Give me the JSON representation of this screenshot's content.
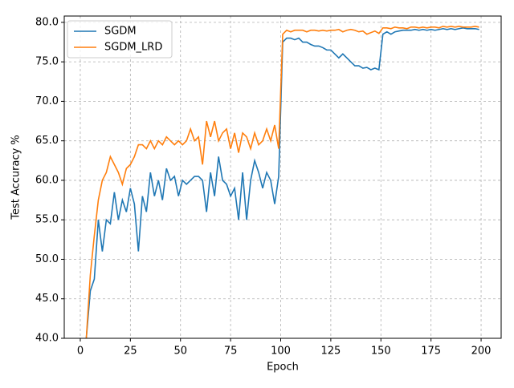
{
  "chart_data": {
    "type": "line",
    "xlabel": "Epoch",
    "ylabel": "Test Accuracy %",
    "x": [
      3,
      5,
      7,
      9,
      11,
      13,
      15,
      17,
      19,
      21,
      23,
      25,
      27,
      29,
      31,
      33,
      35,
      37,
      39,
      41,
      43,
      45,
      47,
      49,
      51,
      53,
      55,
      57,
      59,
      61,
      63,
      65,
      67,
      69,
      71,
      73,
      75,
      77,
      79,
      81,
      83,
      85,
      87,
      89,
      91,
      93,
      95,
      97,
      99,
      101,
      103,
      105,
      107,
      109,
      111,
      113,
      115,
      117,
      119,
      121,
      123,
      125,
      127,
      129,
      131,
      133,
      135,
      137,
      139,
      141,
      143,
      145,
      147,
      149,
      151,
      153,
      155,
      157,
      159,
      161,
      163,
      165,
      167,
      169,
      171,
      173,
      175,
      177,
      179,
      181,
      183,
      185,
      187,
      189,
      191,
      193,
      195,
      197,
      199
    ],
    "series": [
      {
        "name": "SGDM",
        "color": "#1f77b4",
        "values": [
          40,
          46,
          47.5,
          55,
          51,
          55,
          54.5,
          58.5,
          55,
          57.5,
          56,
          59,
          57,
          51,
          58,
          56,
          61,
          58,
          60,
          57.5,
          61.5,
          60,
          60.5,
          58,
          60,
          59.5,
          60,
          60.5,
          60.5,
          60,
          56,
          61,
          58,
          63,
          60,
          59.5,
          58,
          59,
          55,
          61,
          55,
          60,
          62.5,
          61,
          59,
          61,
          60,
          57,
          60.5,
          77.5,
          78,
          78,
          77.8,
          78,
          77.5,
          77.5,
          77.2,
          77,
          77,
          76.8,
          76.5,
          76.5,
          76,
          75.5,
          76,
          75.5,
          75,
          74.5,
          74.5,
          74.2,
          74.3,
          74,
          74.2,
          74,
          78.5,
          78.8,
          78.5,
          78.8,
          78.9,
          79,
          79,
          79,
          79.1,
          79,
          79.1,
          79,
          79.1,
          79,
          79.1,
          79.2,
          79.1,
          79.2,
          79.1,
          79.2,
          79.3,
          79.2,
          79.2,
          79.2,
          79.1
        ]
      },
      {
        "name": "SGDM_LRD",
        "color": "#ff7f0e",
        "values": [
          40,
          48,
          53,
          57.5,
          60,
          61,
          63,
          62,
          61,
          59.5,
          61.5,
          62,
          63,
          64.5,
          64.5,
          64,
          65,
          64,
          65,
          64.5,
          65.5,
          65,
          64.5,
          65,
          64.5,
          65,
          66.5,
          65,
          65.5,
          62,
          67.5,
          65.5,
          67.5,
          65,
          66,
          66.5,
          64,
          66,
          63.5,
          66,
          65.5,
          64,
          66,
          64.5,
          65,
          66.5,
          65,
          67,
          64,
          78.5,
          79,
          78.8,
          79,
          79,
          79,
          78.8,
          79,
          79,
          78.9,
          79,
          78.9,
          79,
          79,
          79.1,
          78.8,
          79,
          79.1,
          79,
          78.8,
          78.9,
          78.5,
          78.7,
          78.9,
          78.6,
          79.3,
          79.3,
          79.2,
          79.4,
          79.3,
          79.3,
          79.2,
          79.4,
          79.4,
          79.3,
          79.4,
          79.3,
          79.4,
          79.4,
          79.3,
          79.5,
          79.4,
          79.5,
          79.4,
          79.5,
          79.4,
          79.4,
          79.4,
          79.5,
          79.4
        ]
      }
    ],
    "xlim": [
      -8,
      210
    ],
    "ylim": [
      40,
      80.8
    ],
    "xticks": [
      0,
      25,
      50,
      75,
      100,
      125,
      150,
      175,
      200
    ],
    "yticks": [
      {
        "value": 40,
        "label": "40.0"
      },
      {
        "value": 45,
        "label": "45.0"
      },
      {
        "value": 50,
        "label": "50.0"
      },
      {
        "value": 55,
        "label": "55.0"
      },
      {
        "value": 60,
        "label": "60.0"
      },
      {
        "value": 65,
        "label": "65.0"
      },
      {
        "value": 70,
        "label": "70.0"
      },
      {
        "value": 75,
        "label": "75.0"
      },
      {
        "value": 80,
        "label": "80.0"
      }
    ],
    "grid": true,
    "legend": "upper-left"
  }
}
